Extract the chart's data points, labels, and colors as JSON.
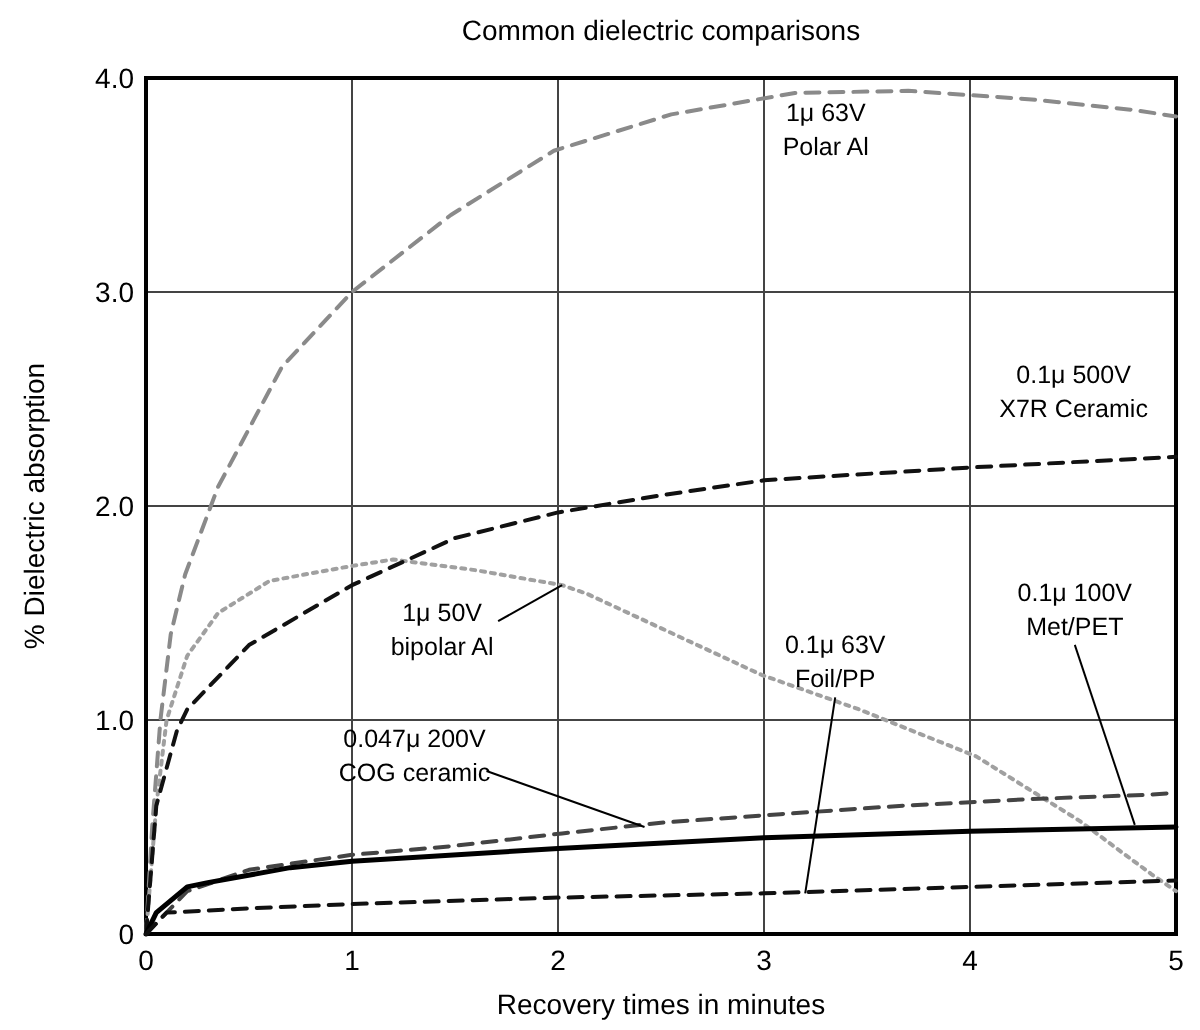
{
  "chart_data": {
    "type": "line",
    "title": "Common dielectric comparisons",
    "xlabel": "Recovery times in minutes",
    "ylabel": "% Dielectric absorption",
    "xlim": [
      0,
      5
    ],
    "xticks": [
      0,
      1,
      2,
      3,
      4,
      5
    ],
    "ylim": [
      0,
      4
    ],
    "yticks": [
      {
        "value": 0,
        "label": "0"
      },
      {
        "value": 1,
        "label": "1.0"
      },
      {
        "value": 2,
        "label": "2.0"
      },
      {
        "value": 3,
        "label": "3.0"
      },
      {
        "value": 4,
        "label": "4.0"
      }
    ],
    "grid": true,
    "series": [
      {
        "color": "#8a8a8a",
        "line_style": "dashed",
        "x": [
          0,
          0.03,
          0.07,
          0.12,
          0.19,
          0.35,
          0.66,
          1.0,
          1.48,
          1.98,
          2.55,
          3.15,
          3.7,
          4.3,
          4.8,
          5
        ],
        "values": [
          0,
          0.5,
          1.0,
          1.4,
          1.68,
          2.09,
          2.65,
          3.0,
          3.36,
          3.66,
          3.83,
          3.93,
          3.94,
          3.9,
          3.85,
          3.82
        ]
      },
      {
        "color": "#a0a0a0",
        "line_style": "dotted",
        "x": [
          0,
          0.05,
          0.1,
          0.2,
          0.35,
          0.6,
          1.0,
          1.2,
          1.6,
          2.02,
          2.14,
          2.99,
          3.46,
          4.03,
          4.53,
          4.88,
          5
        ],
        "values": [
          0,
          0.6,
          1.0,
          1.3,
          1.5,
          1.65,
          1.72,
          1.75,
          1.7,
          1.63,
          1.59,
          1.21,
          1.05,
          0.83,
          0.53,
          0.28,
          0.2
        ]
      },
      {
        "color": "#111111",
        "line_style": "dashed",
        "x": [
          0,
          0.05,
          0.15,
          0.2,
          0.5,
          1,
          1.5,
          2,
          2.5,
          3,
          4,
          5
        ],
        "values": [
          0,
          0.6,
          0.95,
          1.05,
          1.35,
          1.63,
          1.85,
          1.97,
          2.05,
          2.12,
          2.18,
          2.23
        ]
      },
      {
        "color": "#444444",
        "line_style": "dashed",
        "x": [
          0,
          0.2,
          0.5,
          1,
          1.48,
          2.02,
          2.5,
          3.08,
          3.68,
          4.28,
          4.85,
          5
        ],
        "values": [
          0,
          0.2,
          0.3,
          0.37,
          0.41,
          0.47,
          0.52,
          0.56,
          0.6,
          0.63,
          0.65,
          0.66
        ]
      },
      {
        "color": "#000000",
        "line_style": "solid",
        "x": [
          0,
          0.05,
          0.2,
          0.3,
          0.7,
          1,
          2,
          3,
          4,
          5
        ],
        "values": [
          0,
          0.1,
          0.22,
          0.24,
          0.31,
          0.34,
          0.4,
          0.45,
          0.48,
          0.5
        ]
      },
      {
        "color": "#111111",
        "line_style": "dashed",
        "x": [
          0,
          0.1,
          0.5,
          1,
          2,
          3,
          4,
          5
        ],
        "values": [
          0,
          0.1,
          0.12,
          0.14,
          0.17,
          0.19,
          0.22,
          0.25
        ]
      }
    ],
    "annotations": [
      {
        "text": "1μ 63V\nPolar Al",
        "x": 3.3,
        "y": 3.93
      },
      {
        "text": "0.1μ 500V\nX7R Ceramic",
        "x": 4.6,
        "y": 2.2
      },
      {
        "text": "1μ 50V\nbipolar Al",
        "x": 2.02,
        "y": 1.63
      },
      {
        "text": "0.047μ 200V\nCOG ceramic",
        "x": 2.42,
        "y": 0.5
      },
      {
        "text": "0.1μ 63V\nFoil/PP",
        "x": 3.2,
        "y": 0.19
      },
      {
        "text": "0.1μ 100V\nMet/PET",
        "x": 4.8,
        "y": 0.51
      }
    ]
  }
}
